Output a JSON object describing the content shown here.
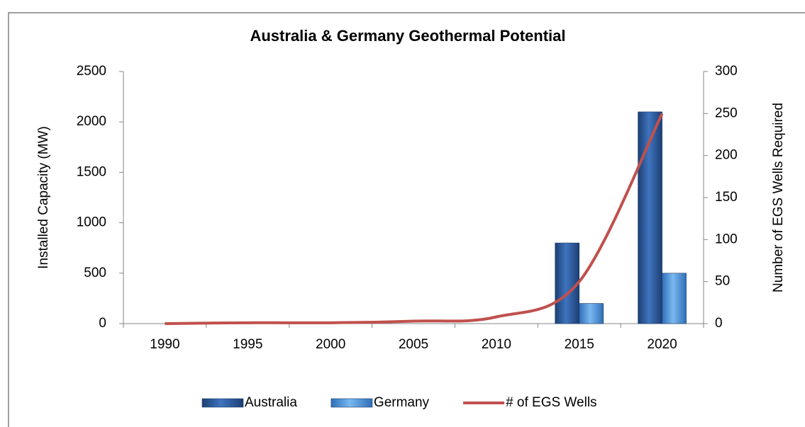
{
  "chart_data": {
    "type": "bar_line",
    "title": "Australia & Germany Geothermal Potential",
    "y_label": "Installed Capacity (MW)",
    "y2_label": "Number of EGS Wells Required",
    "categories": [
      "1990",
      "1995",
      "2000",
      "2005",
      "2010",
      "2015",
      "2020"
    ],
    "series": [
      {
        "name": "Australia",
        "type": "bar",
        "color": "#2e5fa3",
        "values": [
          0,
          0,
          0,
          0,
          0,
          800,
          2100
        ]
      },
      {
        "name": "Germany",
        "type": "bar",
        "color": "#5a9ee0",
        "values": [
          0,
          0,
          0,
          0,
          0,
          200,
          500
        ]
      },
      {
        "name": "# of EGS Wells",
        "type": "line",
        "axis": "y2",
        "color": "#c0504d",
        "values": [
          0,
          1,
          1,
          3,
          8,
          50,
          250
        ]
      }
    ],
    "ylim": [
      0,
      2500
    ],
    "yticks": [
      0,
      500,
      1000,
      1500,
      2000,
      2500
    ],
    "y2lim": [
      0,
      300
    ],
    "y2ticks": [
      0,
      50,
      100,
      150,
      200,
      250,
      300
    ],
    "legend": "bottom"
  }
}
